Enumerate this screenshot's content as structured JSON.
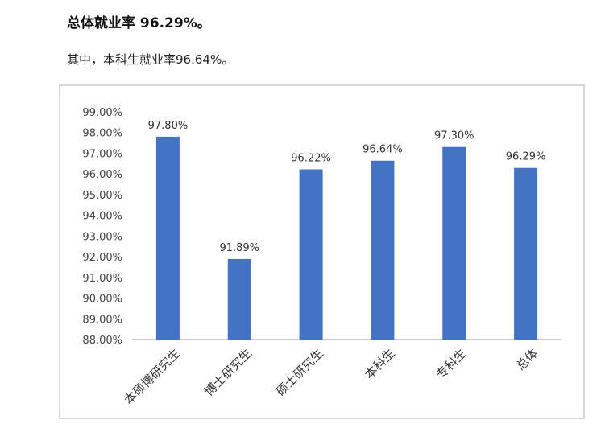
{
  "header": {
    "heading": "总体就业率 96.29%。",
    "subline": "其中，本科生就业率96.64%。"
  },
  "chart_data": {
    "type": "bar",
    "categories": [
      "本硕博研究生",
      "博士研究生",
      "硕士研究生",
      "本科生",
      "专科生",
      "总体"
    ],
    "values": [
      97.8,
      91.89,
      96.22,
      96.64,
      97.3,
      96.29
    ],
    "data_labels": [
      "97.80%",
      "91.89%",
      "96.22%",
      "96.64%",
      "97.30%",
      "96.29%"
    ],
    "title": "",
    "xlabel": "",
    "ylabel": "",
    "ylim": [
      88,
      99
    ],
    "yticks": [
      "88.00%",
      "89.00%",
      "90.00%",
      "91.00%",
      "92.00%",
      "93.00%",
      "94.00%",
      "95.00%",
      "96.00%",
      "97.00%",
      "98.00%",
      "99.00%"
    ],
    "bar_color": "#4472C4",
    "grid": false,
    "legend": "none"
  }
}
